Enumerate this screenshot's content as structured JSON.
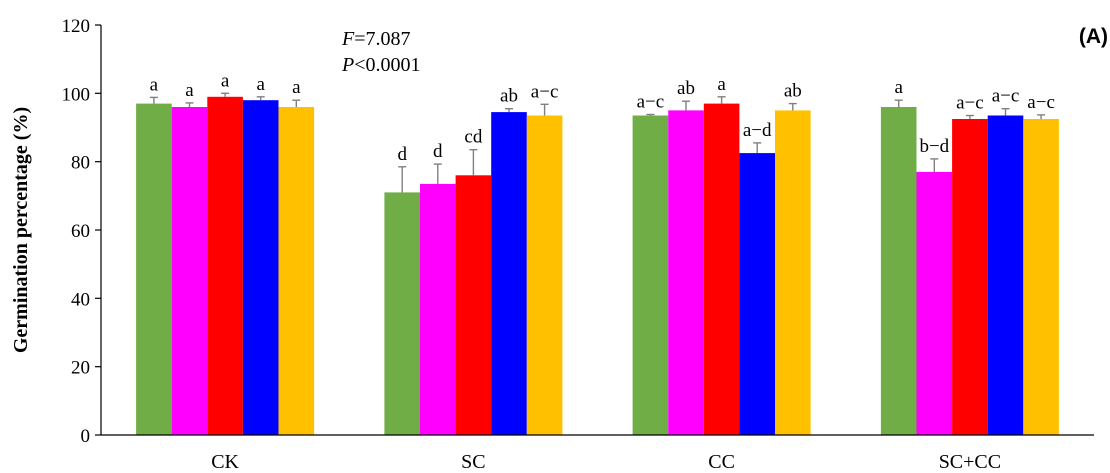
{
  "chart_data": {
    "type": "bar",
    "ylabel": "Germination percentage (%)",
    "xlabel": "",
    "ylim": [
      0,
      120
    ],
    "yticks": [
      0,
      20,
      40,
      60,
      80,
      100,
      120
    ],
    "grid": false,
    "legend": "none",
    "panel_label": "(A)",
    "annotation": {
      "f_label": "F",
      "f_value": "=7.087",
      "p_label": "P",
      "p_value": "<0.0001"
    },
    "categories": [
      "CK",
      "SC",
      "CC",
      "SC+CC"
    ],
    "series": [
      {
        "color": "#70ad47",
        "values": [
          97,
          71,
          93.5,
          96
        ],
        "errors": [
          1.8,
          7.5,
          0.3,
          2.0
        ],
        "labels": [
          "a",
          "d",
          "a−c",
          "a"
        ]
      },
      {
        "color": "#ff00ff",
        "values": [
          96,
          73.5,
          95,
          77
        ],
        "errors": [
          1.2,
          5.8,
          2.7,
          3.8
        ],
        "labels": [
          "a",
          "d",
          "ab",
          "b−d"
        ]
      },
      {
        "color": "#ff0000",
        "values": [
          99,
          76,
          97,
          92.5
        ],
        "errors": [
          1.0,
          7.5,
          2.0,
          1.0
        ],
        "labels": [
          "a",
          "cd",
          "a",
          "a−c"
        ]
      },
      {
        "color": "#0000ff",
        "values": [
          98,
          94.5,
          82.5,
          93.5
        ],
        "errors": [
          1.0,
          1.0,
          3.0,
          2.0
        ],
        "labels": [
          "a",
          "ab",
          "a−d",
          "a−c"
        ]
      },
      {
        "color": "#ffc000",
        "values": [
          96,
          93.5,
          95,
          92.5
        ],
        "errors": [
          2.0,
          3.3,
          2.0,
          1.2
        ],
        "labels": [
          "a",
          "a−c",
          "ab",
          "a−c"
        ]
      }
    ]
  }
}
